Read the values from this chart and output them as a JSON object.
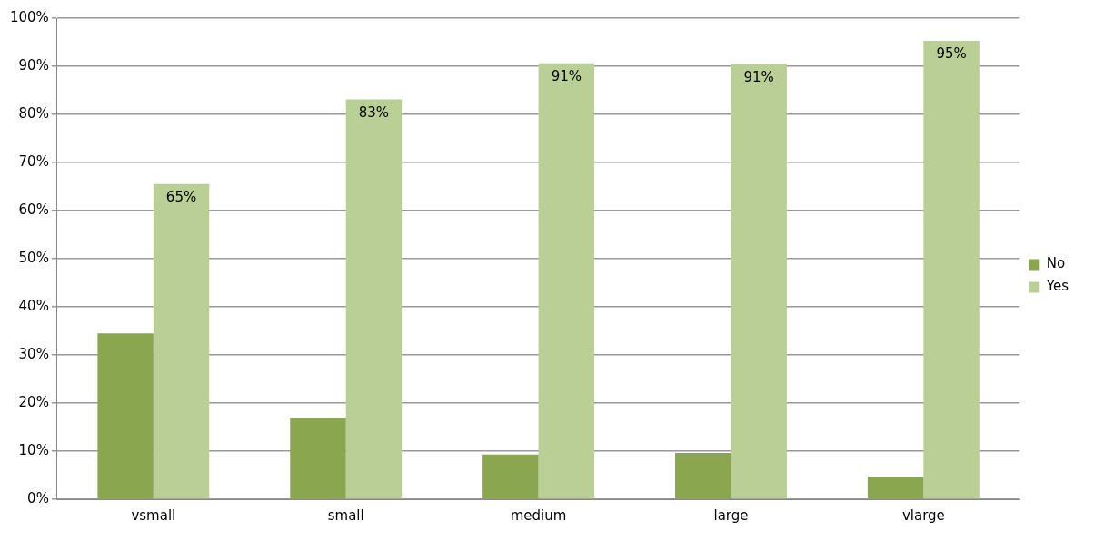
{
  "chart_data": {
    "type": "bar",
    "categories": [
      "vsmall",
      "small",
      "medium",
      "large",
      "vlarge"
    ],
    "series": [
      {
        "name": "No",
        "color": "#8aa64e",
        "values": [
          34.5,
          16.9,
          9.3,
          9.6,
          4.7
        ]
      },
      {
        "name": "Yes",
        "color": "#bacf96",
        "values": [
          65.5,
          83.1,
          90.6,
          90.5,
          95.3
        ],
        "value_labels": [
          "65%",
          "83%",
          "91%",
          "91%",
          "95%"
        ]
      }
    ],
    "ylim": [
      0,
      100
    ],
    "yticks": [
      {
        "value": 0,
        "label": "0%"
      },
      {
        "value": 10,
        "label": "10%"
      },
      {
        "value": 20,
        "label": "20%"
      },
      {
        "value": 30,
        "label": "30%"
      },
      {
        "value": 40,
        "label": "40%"
      },
      {
        "value": 50,
        "label": "50%"
      },
      {
        "value": 60,
        "label": "60%"
      },
      {
        "value": 70,
        "label": "70%"
      },
      {
        "value": 80,
        "label": "80%"
      },
      {
        "value": 90,
        "label": "90%"
      },
      {
        "value": 100,
        "label": "100%"
      }
    ],
    "grid": "y",
    "legend": "right"
  }
}
